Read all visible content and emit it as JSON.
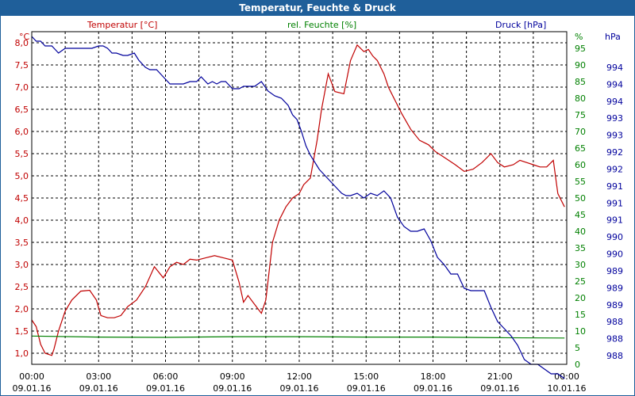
{
  "window": {
    "title": "Temperatur, Feuchte & Druck"
  },
  "colors": {
    "temperature": "#c00000",
    "humidity": "#008000",
    "pressure": "#00009c",
    "grid": "#000000",
    "titlebar": "#1f5f9a"
  },
  "chart_data": {
    "type": "line",
    "title": "Temperatur, Feuchte & Druck",
    "legend": {
      "temperature": "Temperatur [°C]",
      "humidity": "rel. Feuchte [%]",
      "pressure": "Druck [hPa]"
    },
    "axes": {
      "left": {
        "unit": "°C",
        "min": 0.75,
        "max": 8.25,
        "ticks": [
          1.0,
          1.5,
          2.0,
          2.5,
          3.0,
          3.5,
          4.0,
          4.5,
          5.0,
          5.5,
          6.0,
          6.5,
          7.0,
          7.5,
          8.0
        ],
        "tick_labels": [
          "1,0",
          "1,5",
          "2,0",
          "2,5",
          "3,0",
          "3,5",
          "4,0",
          "4,5",
          "5,0",
          "5,5",
          "6,0",
          "6,5",
          "7,0",
          "7,5",
          "8,0"
        ]
      },
      "right1": {
        "unit": "%",
        "min": 0,
        "max": 100,
        "ticks": [
          0,
          5,
          10,
          15,
          20,
          25,
          30,
          35,
          40,
          45,
          50,
          55,
          60,
          65,
          70,
          75,
          80,
          85,
          90,
          95
        ],
        "tick_labels": [
          "0",
          "5",
          "10",
          "15",
          "20",
          "25",
          "30",
          "35",
          "40",
          "45",
          "50",
          "55",
          "60",
          "65",
          "70",
          "75",
          "80",
          "85",
          "90",
          "95"
        ]
      },
      "right2": {
        "unit": "hPa",
        "min": 987.7,
        "max": 994.7,
        "tick_labels": [
          "988",
          "988",
          "988",
          "989",
          "989",
          "989",
          "990",
          "990",
          "991",
          "991",
          "991",
          "992",
          "992",
          "993",
          "993",
          "994",
          "994",
          "994"
        ]
      },
      "x": {
        "hours_min": 0,
        "hours_max": 24,
        "tick_hours": [
          0,
          3,
          6,
          9,
          12,
          15,
          18,
          21,
          24
        ],
        "tick_times": [
          "00:00",
          "03:00",
          "06:00",
          "09:00",
          "12:00",
          "15:00",
          "18:00",
          "21:00",
          "00:00"
        ],
        "tick_dates": [
          "09.01.16",
          "09.01.16",
          "09.01.16",
          "09.01.16",
          "09.01.16",
          "09.01.16",
          "09.01.16",
          "09.01.16",
          "10.01.16"
        ]
      }
    },
    "series": [
      {
        "name": "Temperatur [°C]",
        "axis": "left",
        "x": [
          0,
          0.2,
          0.4,
          0.6,
          0.9,
          1.0,
          1.2,
          1.5,
          1.8,
          2.2,
          2.6,
          2.9,
          3.1,
          3.4,
          3.7,
          4.0,
          4.3,
          4.7,
          5.1,
          5.5,
          5.9,
          6.2,
          6.5,
          6.8,
          7.1,
          7.4,
          7.8,
          8.2,
          8.6,
          9.0,
          9.3,
          9.5,
          9.7,
          10.0,
          10.3,
          10.5,
          10.8,
          11.1,
          11.4,
          11.7,
          12.0,
          12.2,
          12.5,
          12.8,
          13.0,
          13.3,
          13.6,
          14.0,
          14.3,
          14.6,
          14.9,
          15.1,
          15.3,
          15.5,
          15.8,
          16.0,
          16.2,
          16.6,
          17.0,
          17.4,
          17.8,
          18.1,
          18.4,
          18.7,
          19.0,
          19.4,
          19.8,
          20.2,
          20.6,
          20.9,
          21.2,
          21.6,
          21.9,
          22.2,
          22.5,
          22.8,
          23.1,
          23.4,
          23.6,
          23.9
        ],
        "values": [
          1.75,
          1.6,
          1.2,
          1.0,
          0.95,
          1.1,
          1.5,
          1.95,
          2.2,
          2.4,
          2.42,
          2.2,
          1.85,
          1.8,
          1.8,
          1.85,
          2.05,
          2.2,
          2.5,
          2.95,
          2.7,
          2.95,
          3.05,
          3.0,
          3.12,
          3.1,
          3.15,
          3.2,
          3.15,
          3.1,
          2.6,
          2.15,
          2.3,
          2.1,
          1.9,
          2.2,
          3.5,
          4.0,
          4.3,
          4.5,
          4.6,
          4.8,
          4.95,
          5.8,
          6.5,
          7.3,
          6.9,
          6.85,
          7.6,
          7.95,
          7.8,
          7.85,
          7.7,
          7.6,
          7.3,
          7.0,
          6.8,
          6.4,
          6.05,
          5.8,
          5.7,
          5.55,
          5.45,
          5.35,
          5.25,
          5.1,
          5.15,
          5.3,
          5.5,
          5.3,
          5.2,
          5.25,
          5.35,
          5.3,
          5.25,
          5.2,
          5.2,
          5.35,
          4.6,
          4.3
        ]
      },
      {
        "name": "rel. Feuchte [%]",
        "axis": "right1",
        "x": [
          0,
          3,
          6,
          9,
          12,
          15,
          18,
          21,
          23.9
        ],
        "values": [
          8.5,
          8.2,
          8.1,
          8.3,
          8.3,
          8.2,
          8.2,
          8.0,
          7.9
        ]
      },
      {
        "name": "Druck [hPa]",
        "axis": "right2",
        "x": [
          0,
          0.2,
          0.4,
          0.6,
          0.9,
          1.2,
          1.5,
          1.8,
          2.1,
          2.4,
          2.7,
          3.0,
          3.2,
          3.4,
          3.6,
          3.8,
          4.1,
          4.3,
          4.6,
          4.8,
          5.1,
          5.3,
          5.6,
          5.9,
          6.2,
          6.5,
          6.8,
          7.1,
          7.4,
          7.6,
          7.9,
          8.1,
          8.3,
          8.5,
          8.7,
          9.0,
          9.3,
          9.5,
          9.8,
          10.0,
          10.3,
          10.6,
          10.9,
          11.2,
          11.5,
          11.7,
          11.9,
          12.1,
          12.3,
          12.5,
          12.7,
          12.9,
          13.1,
          13.3,
          13.5,
          13.7,
          13.9,
          14.1,
          14.3,
          14.6,
          14.9,
          15.2,
          15.5,
          15.8,
          16.1,
          16.4,
          16.7,
          17.0,
          17.3,
          17.6,
          17.9,
          18.2,
          18.5,
          18.8,
          19.1,
          19.4,
          19.7,
          20.0,
          20.3,
          20.6,
          20.9,
          21.2,
          21.5,
          21.8,
          22.1,
          22.4,
          22.7,
          23.0,
          23.3,
          23.6,
          23.9
        ],
        "values": [
          994.6,
          994.5,
          994.5,
          994.4,
          994.4,
          994.25,
          994.35,
          994.35,
          994.35,
          994.35,
          994.35,
          994.4,
          994.4,
          994.35,
          994.25,
          994.25,
          994.2,
          994.2,
          994.25,
          994.1,
          993.95,
          993.9,
          993.9,
          993.75,
          993.6,
          993.6,
          993.6,
          993.65,
          993.65,
          993.75,
          993.6,
          993.65,
          993.6,
          993.65,
          993.65,
          993.5,
          993.5,
          993.55,
          993.55,
          993.55,
          993.65,
          993.45,
          993.35,
          993.3,
          993.15,
          992.95,
          992.85,
          992.6,
          992.3,
          992.1,
          991.95,
          991.8,
          991.7,
          991.6,
          991.5,
          991.4,
          991.3,
          991.25,
          991.25,
          991.3,
          991.2,
          991.3,
          991.25,
          991.35,
          991.2,
          990.8,
          990.6,
          990.5,
          990.5,
          990.55,
          990.3,
          989.95,
          989.8,
          989.6,
          989.6,
          989.3,
          989.25,
          989.25,
          989.25,
          988.9,
          988.6,
          988.45,
          988.3,
          988.1,
          987.8,
          987.7,
          987.7,
          987.6,
          987.5,
          987.5,
          987.4
        ]
      }
    ]
  }
}
